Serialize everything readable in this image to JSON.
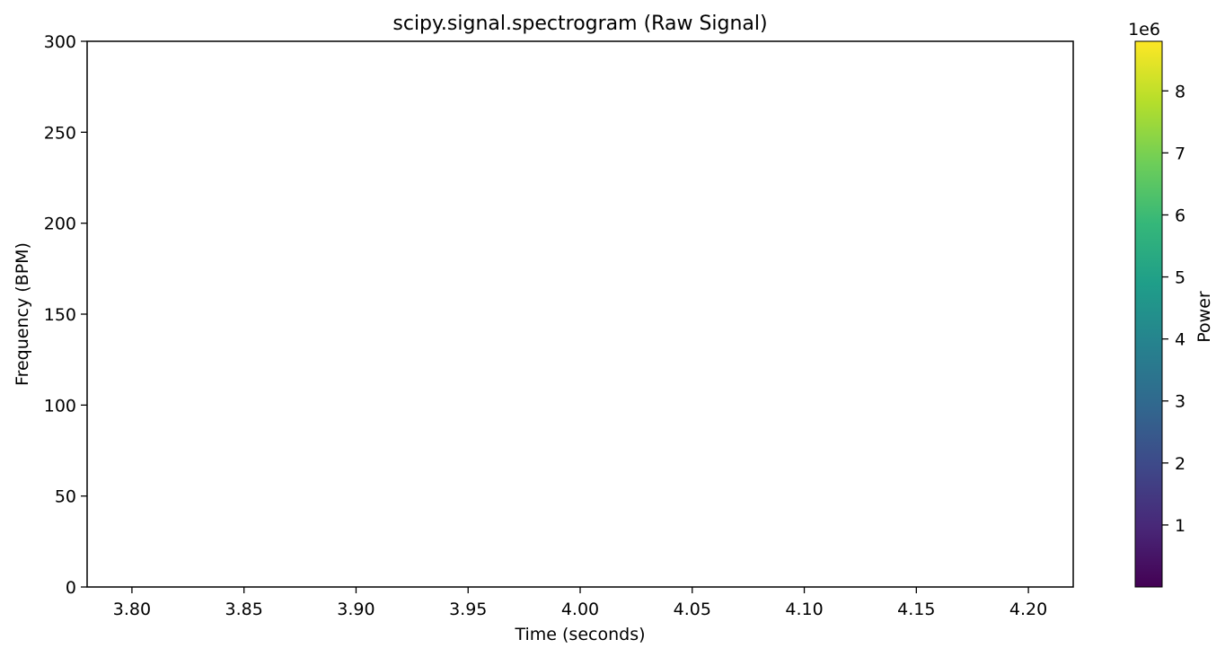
{
  "chart_data": {
    "type": "heatmap",
    "title": "scipy.signal.spectrogram (Raw Signal)",
    "xlabel": "Time (seconds)",
    "ylabel": "Frequency (BPM)",
    "xlim": [
      3.78,
      4.22
    ],
    "ylim": [
      0,
      300
    ],
    "x_ticks": [
      3.8,
      3.85,
      3.9,
      3.95,
      4.0,
      4.05,
      4.1,
      4.15,
      4.2
    ],
    "x_tick_labels": [
      "3.80",
      "3.85",
      "3.90",
      "3.95",
      "4.00",
      "4.05",
      "4.10",
      "4.15",
      "4.20"
    ],
    "y_ticks": [
      0,
      50,
      100,
      150,
      200,
      250,
      300
    ],
    "y_tick_labels": [
      "0",
      "50",
      "100",
      "150",
      "200",
      "250",
      "300"
    ],
    "grid": false,
    "data": [],
    "colorbar": {
      "label": "Power",
      "colormap": "viridis",
      "range": [
        0,
        8800000
      ],
      "offset_text": "1e6",
      "ticks": [
        1000000,
        2000000,
        3000000,
        4000000,
        5000000,
        6000000,
        7000000,
        8000000
      ],
      "tick_labels": [
        "1",
        "2",
        "3",
        "4",
        "5",
        "6",
        "7",
        "8"
      ],
      "colors": [
        "#440154",
        "#482878",
        "#3e4989",
        "#31688e",
        "#26828e",
        "#1f9e89",
        "#35b779",
        "#6ece58",
        "#b5de2b",
        "#fde725"
      ]
    }
  }
}
